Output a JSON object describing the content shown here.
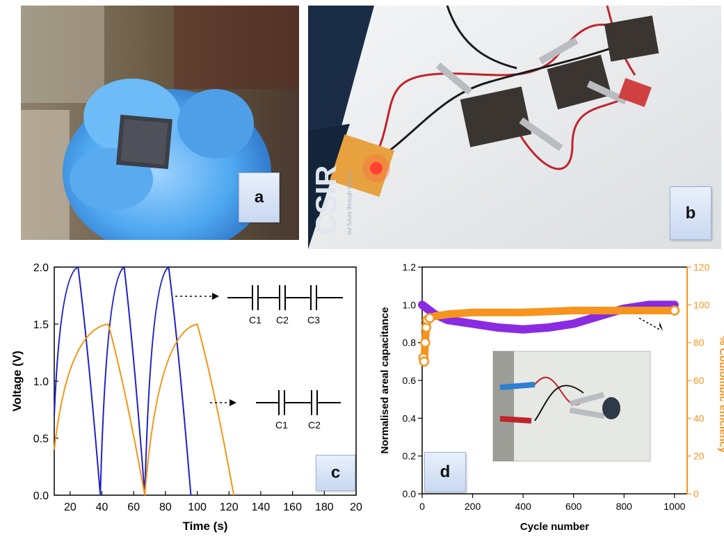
{
  "panels": {
    "a": {
      "label": "a"
    },
    "b": {
      "label": "b",
      "board_text": "CSIR",
      "board_subtext": "our future through science"
    },
    "c": {
      "label": "c"
    },
    "d": {
      "label": "d"
    }
  },
  "colors": {
    "blue": "#1f1fc8",
    "orange": "#f39512",
    "purple": "#8a2be2",
    "orange_ce": "#f7941d"
  },
  "chart_data": [
    {
      "type": "line",
      "panel": "c",
      "xlabel": "Time (s)",
      "ylabel": "Voltage (V)",
      "xlim": [
        10,
        200
      ],
      "ylim": [
        0.0,
        2.0
      ],
      "xticks": [
        "20",
        "40",
        "60",
        "80",
        "100",
        "120",
        "140",
        "160",
        "180",
        "20"
      ],
      "yticks": [
        "0.0",
        "0.5",
        "1.0",
        "1.5",
        "2.0"
      ],
      "series": [
        {
          "color": "#1f1fc8",
          "x": [
            10,
            25,
            39,
            39,
            54,
            67,
            67,
            82,
            96
          ],
          "y": [
            0.7,
            2.0,
            0.0,
            0.0,
            2.0,
            0.0,
            0.0,
            2.0,
            0.0
          ]
        },
        {
          "color": "#f39512",
          "x": [
            10,
            44,
            67,
            67,
            100,
            123
          ],
          "y": [
            0.4,
            1.5,
            0.0,
            0.0,
            1.5,
            0.0
          ]
        }
      ],
      "annotations": {
        "circuit_top": [
          "C1",
          "C2",
          "C3"
        ],
        "circuit_bottom": [
          "C1",
          "C2"
        ]
      }
    },
    {
      "type": "line",
      "panel": "d",
      "xlabel": "Cycle number",
      "ylabel": "Normalised areal capacitance",
      "y2label": "% Coulombic efficiency",
      "xlim": [
        0,
        1050
      ],
      "ylim": [
        0.0,
        1.2
      ],
      "y2lim": [
        0,
        120
      ],
      "xticks": [
        "0",
        "200",
        "400",
        "600",
        "800",
        "1000"
      ],
      "yticks": [
        "0.0",
        "0.2",
        "0.4",
        "0.6",
        "0.8",
        "1.0",
        "1.2"
      ],
      "y2ticks": [
        "0",
        "20",
        "40",
        "60",
        "80",
        "100",
        "120"
      ],
      "series": [
        {
          "axis": "left",
          "color": "#8a2be2",
          "x": [
            0,
            50,
            100,
            200,
            300,
            400,
            500,
            600,
            700,
            800,
            900,
            1000
          ],
          "y": [
            1.0,
            0.95,
            0.92,
            0.9,
            0.88,
            0.87,
            0.88,
            0.9,
            0.94,
            0.98,
            1.0,
            1.0
          ]
        },
        {
          "axis": "right",
          "color": "#f7941d",
          "x": [
            5,
            8,
            12,
            16,
            20,
            30,
            50,
            100,
            200,
            400,
            600,
            800,
            1000
          ],
          "y": [
            72,
            70,
            80,
            88,
            92,
            93,
            94,
            95,
            96,
            96,
            97,
            97,
            97
          ]
        }
      ]
    }
  ]
}
